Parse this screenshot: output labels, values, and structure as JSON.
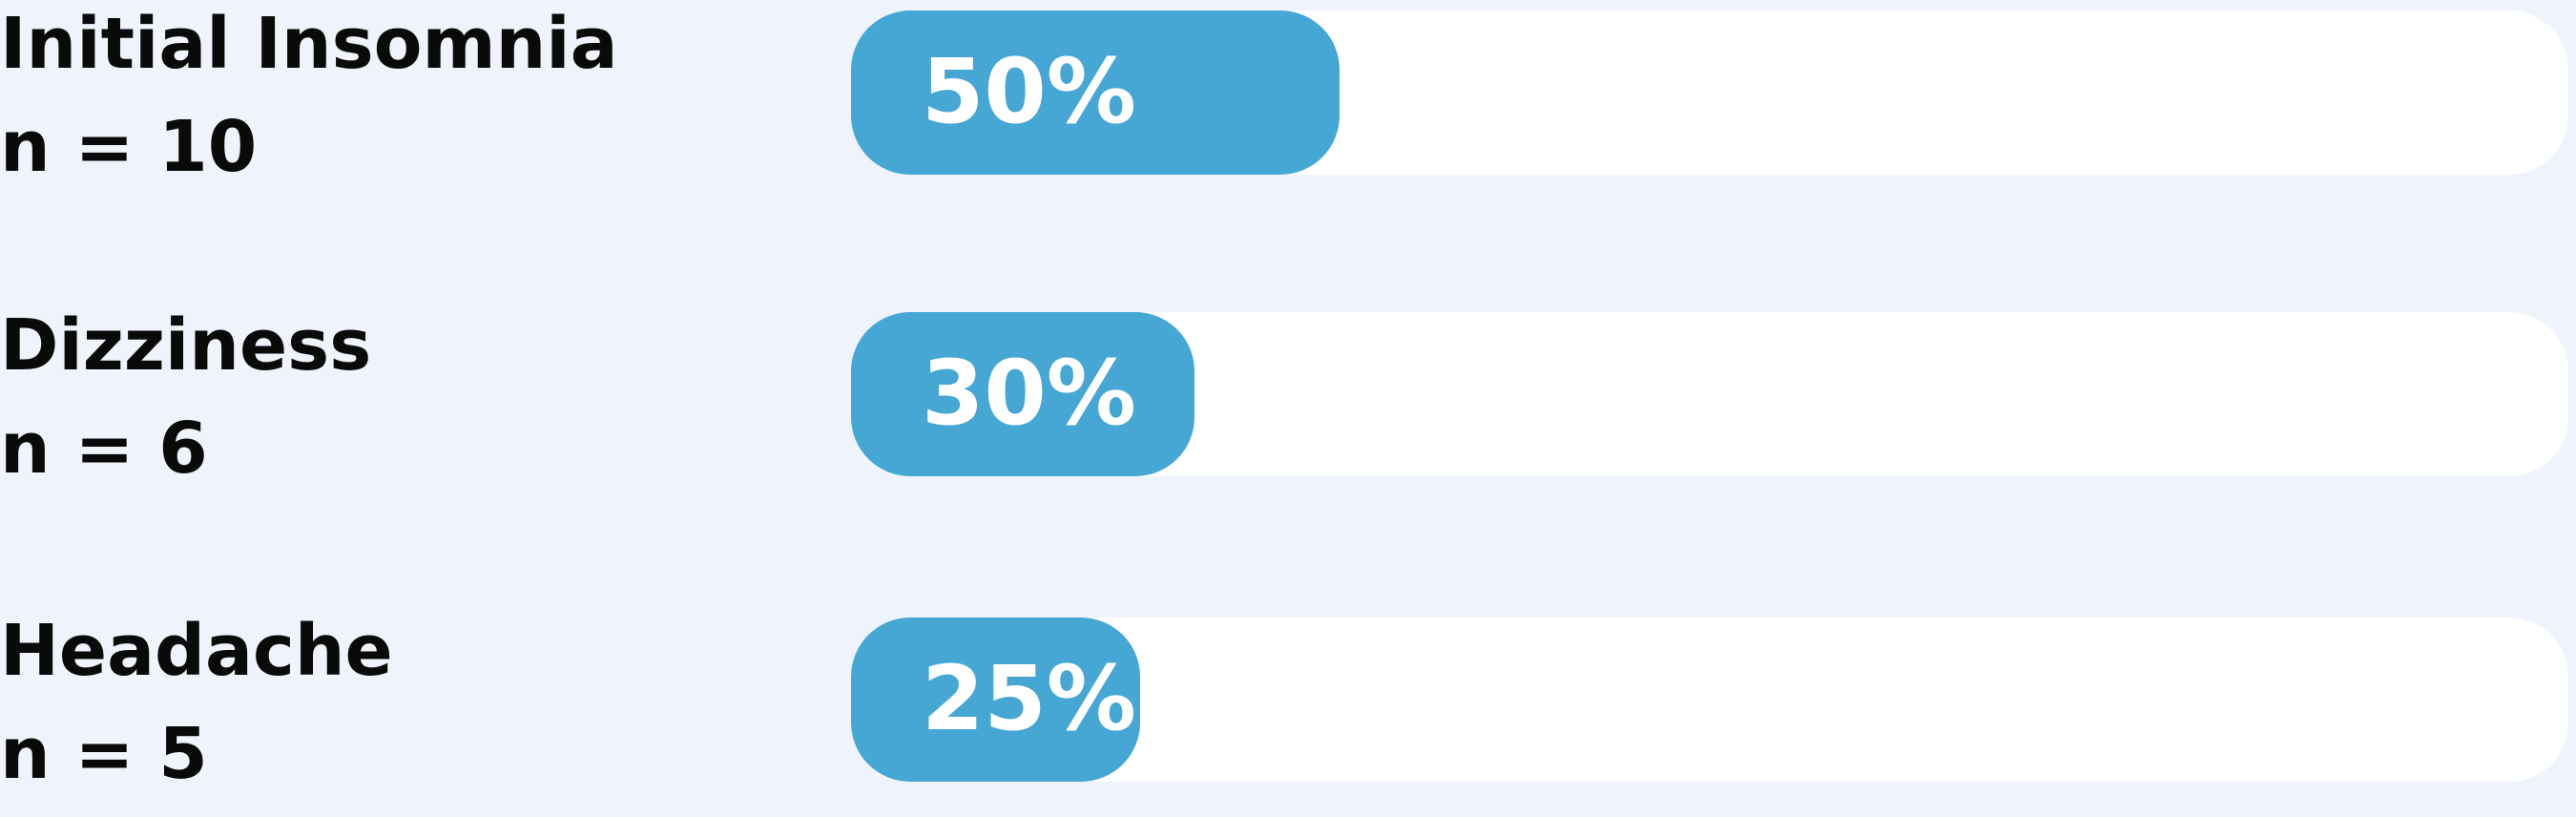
{
  "chart_data": {
    "type": "bar",
    "orientation": "horizontal",
    "categories": [
      "Initial Insomnia",
      "Dizziness",
      "Headache"
    ],
    "counts": [
      "n = 10",
      "n = 6",
      "n = 5"
    ],
    "values": [
      50,
      30,
      25
    ],
    "value_labels": [
      "50%",
      "30%",
      "25%"
    ],
    "xlim": [
      0,
      100
    ],
    "grid": false,
    "legend": "none",
    "colors": {
      "bar": "#46a7d4",
      "track": "#ffffff",
      "background": "#eef3fc",
      "label_text": "#0a0a0a",
      "value_text": "#ffffff"
    }
  }
}
